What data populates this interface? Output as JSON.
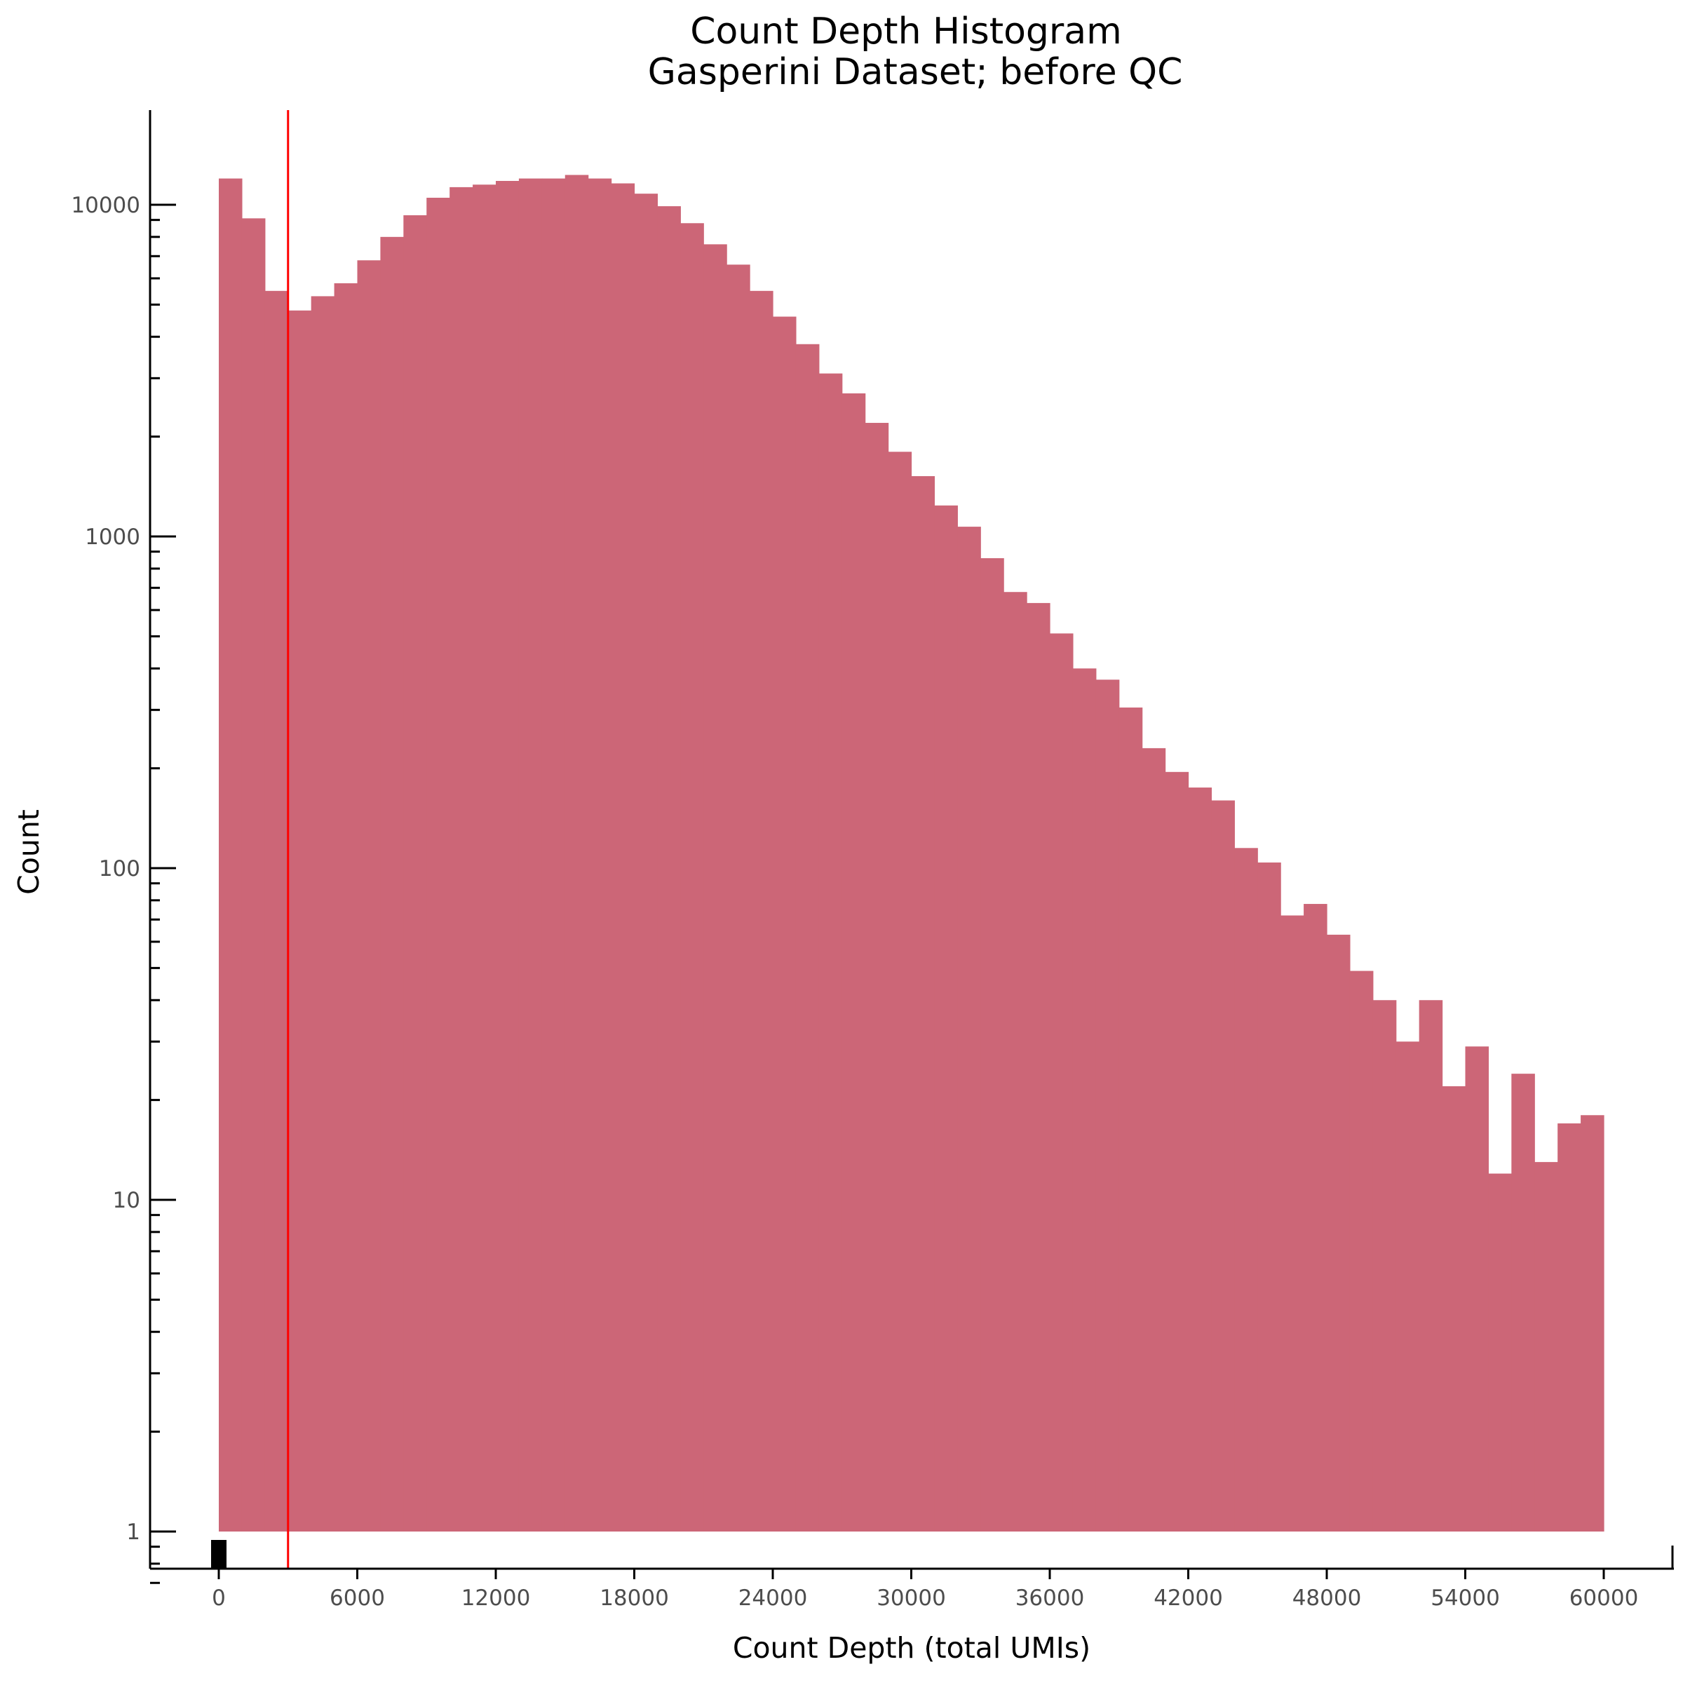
{
  "chart_data": {
    "type": "bar",
    "title": "Count Depth Histogram",
    "subtitle": "Gasperini Dataset; before QC",
    "xlabel": "Count Depth (total UMIs)",
    "ylabel": "Count",
    "x_ticks": [
      0,
      6000,
      12000,
      18000,
      24000,
      30000,
      36000,
      42000,
      48000,
      54000,
      60000
    ],
    "y_scale": "log",
    "y_ticks": [
      1,
      10,
      100,
      1000,
      10000
    ],
    "xlim": [
      -3000,
      63000
    ],
    "ylim": [
      0.65,
      18000
    ],
    "bin_width": 1000,
    "bins_start": [
      0,
      1000,
      2000,
      3000,
      4000,
      5000,
      6000,
      7000,
      8000,
      9000,
      10000,
      11000,
      12000,
      13000,
      14000,
      15000,
      16000,
      17000,
      18000,
      19000,
      20000,
      21000,
      22000,
      23000,
      24000,
      25000,
      26000,
      27000,
      28000,
      29000,
      30000,
      31000,
      32000,
      33000,
      34000,
      35000,
      36000,
      37000,
      38000,
      39000,
      40000,
      41000,
      42000,
      43000,
      44000,
      45000,
      46000,
      47000,
      48000,
      49000,
      50000,
      51000,
      52000,
      53000,
      54000,
      55000,
      56000,
      57000,
      58000,
      59000
    ],
    "values": [
      12000,
      9100,
      5500,
      4800,
      5300,
      5800,
      6800,
      8000,
      9300,
      10500,
      11300,
      11500,
      11800,
      12000,
      12000,
      12300,
      12000,
      11600,
      10800,
      9900,
      8800,
      7600,
      6600,
      5500,
      4600,
      3800,
      3100,
      2700,
      2200,
      1800,
      1520,
      1240,
      1070,
      860,
      680,
      630,
      510,
      400,
      370,
      305,
      230,
      195,
      175,
      160,
      115,
      104,
      72,
      78,
      63,
      49,
      40,
      30,
      40,
      22,
      29,
      12,
      24,
      13,
      17,
      18
    ],
    "bar_color": "#cc6677",
    "threshold": {
      "x": 3000,
      "color": "#ff0000"
    },
    "grid": false,
    "legend": "none"
  }
}
